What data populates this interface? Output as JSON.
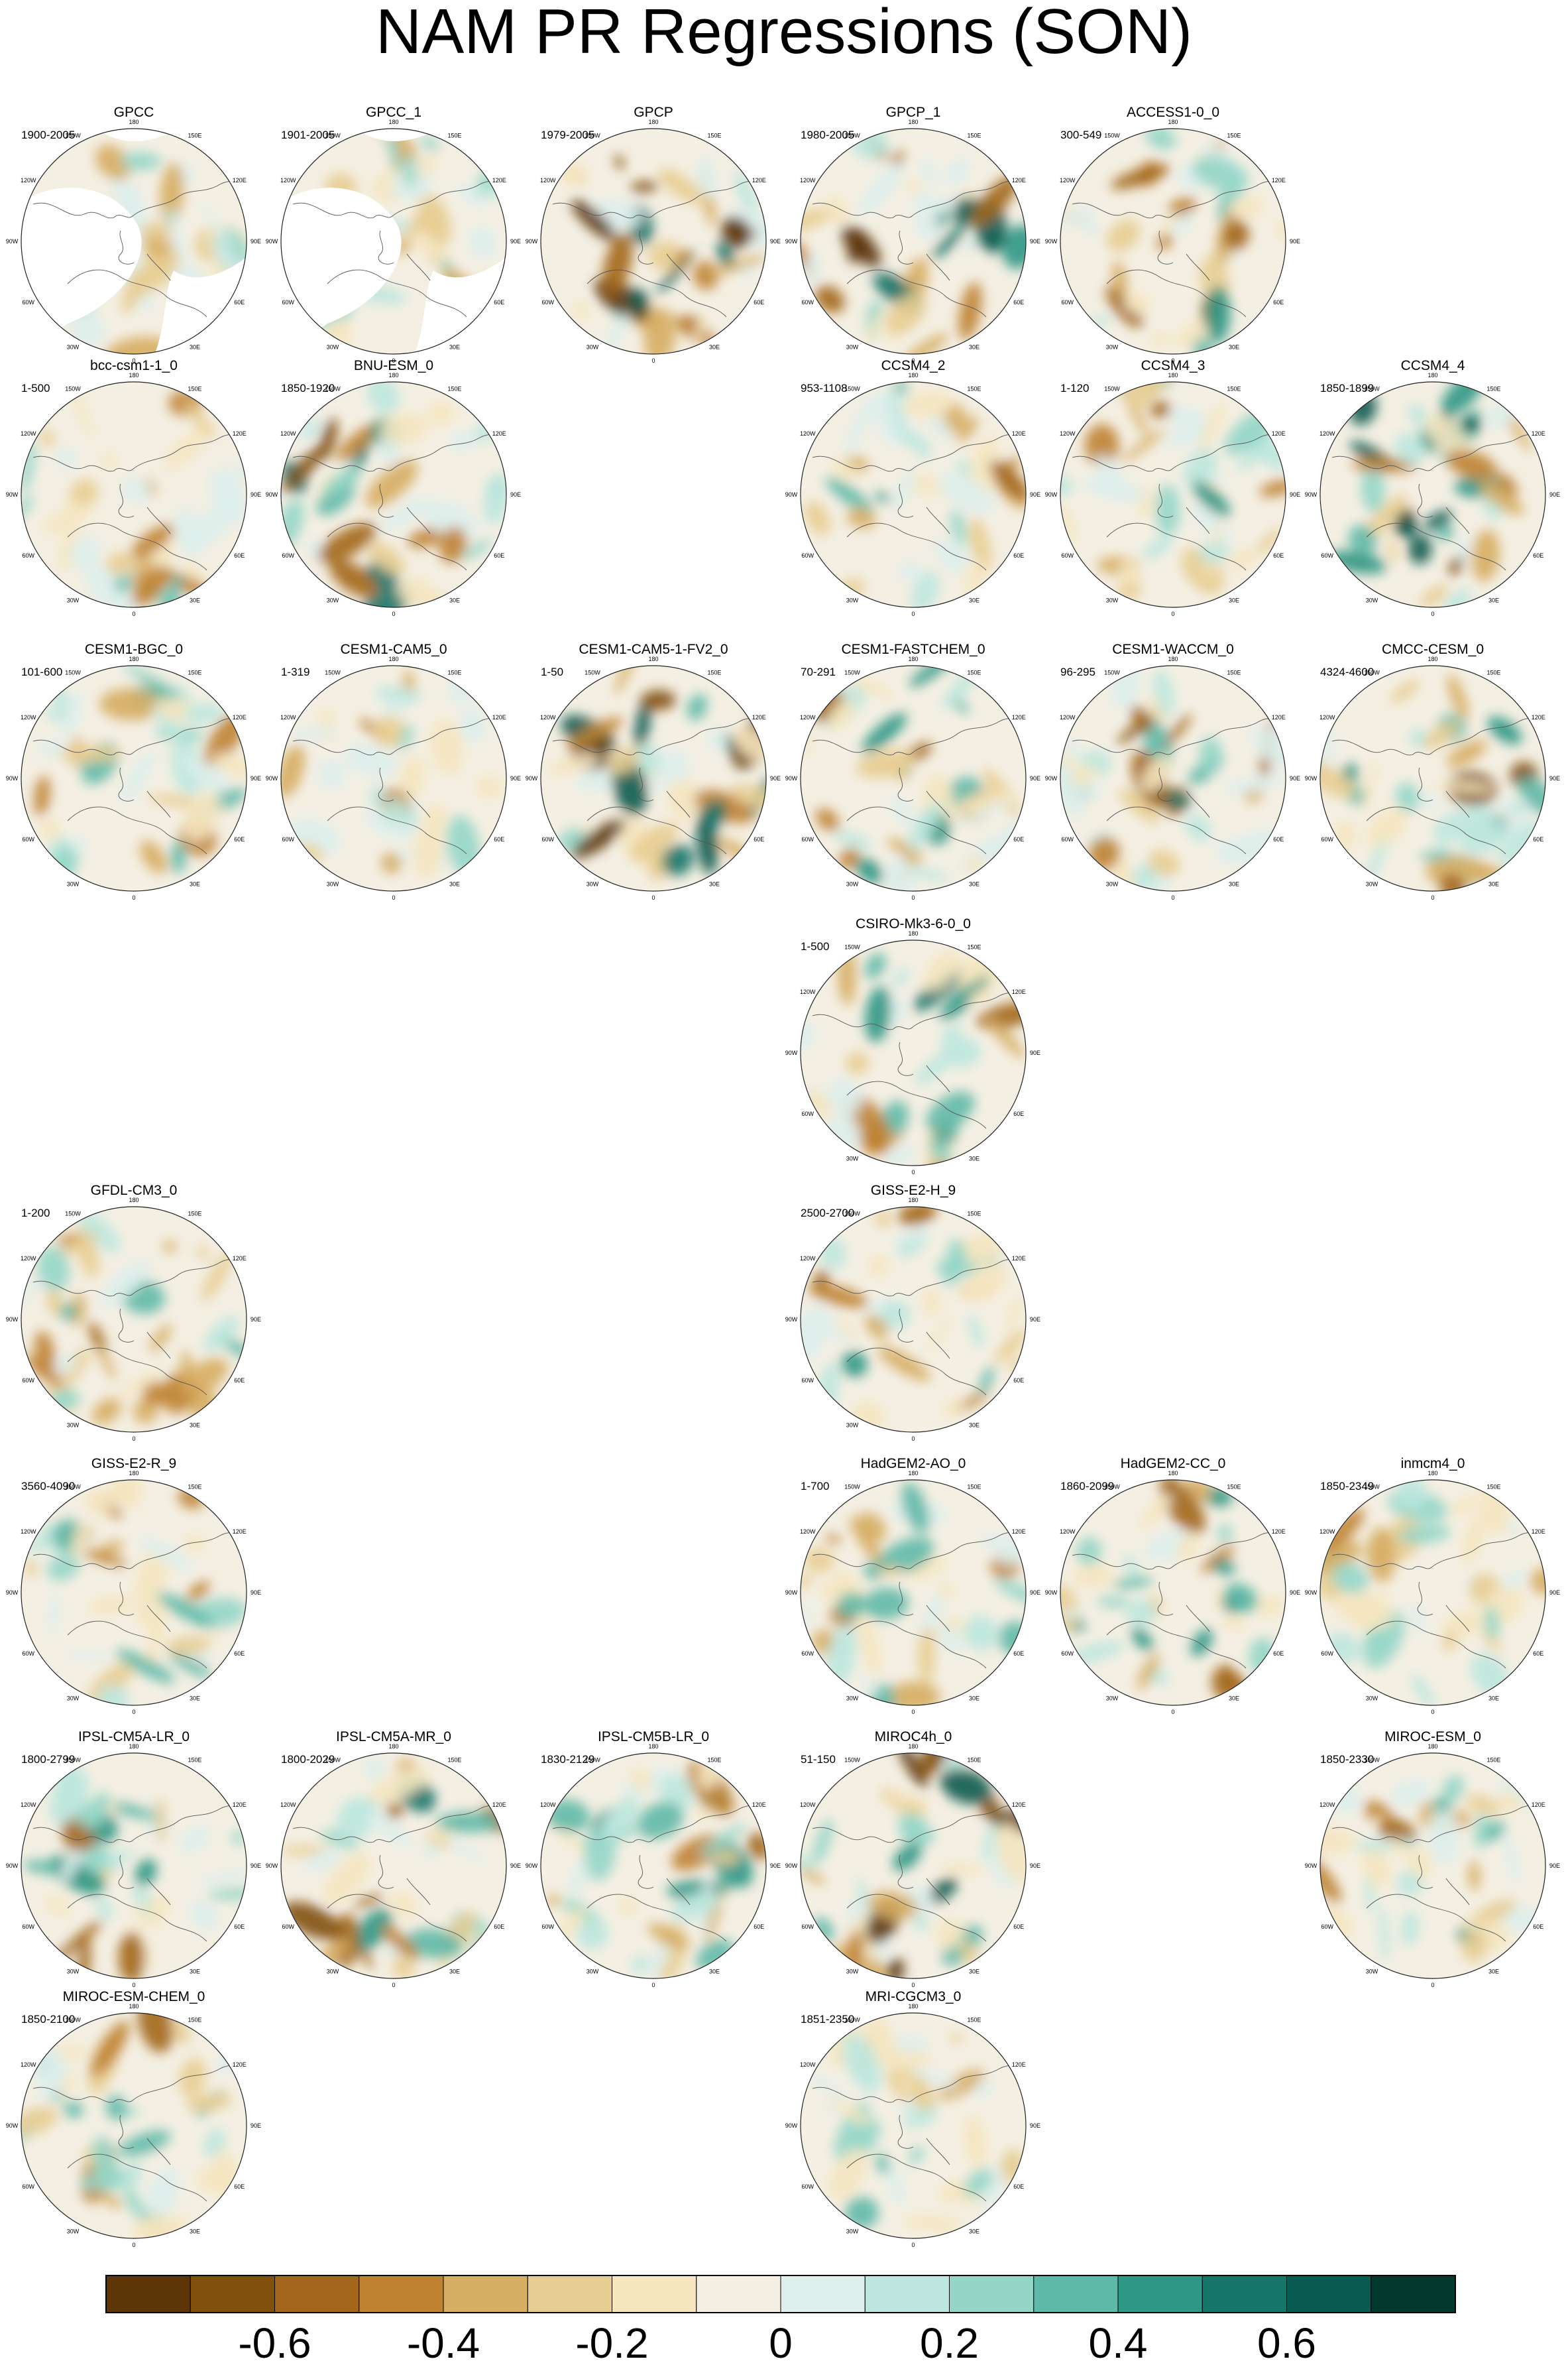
{
  "chart_data": {
    "type": "heatmap",
    "title": "NAM PR Regressions (SON)",
    "projection": "north-polar-stereographic",
    "grid_labels": {
      "top": "180",
      "upper_left": "150W",
      "upper_right": "150E",
      "left_upper": "120W",
      "right_upper": "120E",
      "left": "90W",
      "right": "90E",
      "left_lower": "60W",
      "right_lower": "60E",
      "lower_left": "30W",
      "lower_right": "30E",
      "bottom": "0"
    },
    "colorbar": {
      "colors": [
        "#5c3609",
        "#82500d",
        "#a2661a",
        "#bf8230",
        "#d6ad63",
        "#e8cd92",
        "#f5e6c0",
        "#f4efe3",
        "#ddeeec",
        "#bde7de",
        "#93d6c8",
        "#5fb9a9",
        "#2e9785",
        "#15766a",
        "#095b4f",
        "#01392f"
      ],
      "tick_values": [
        -0.6,
        -0.4,
        -0.2,
        0,
        0.2,
        0.4,
        0.6
      ],
      "tick_labels": [
        "-0.6",
        "-0.4",
        "-0.2",
        "0",
        "0.2",
        "0.4",
        "0.6"
      ]
    },
    "panels": [
      {
        "name": "GPCC",
        "years": "1900-2005",
        "row": 0,
        "col": 0,
        "masked": true,
        "intensity": 0.35
      },
      {
        "name": "GPCC_1",
        "years": "1901-2005",
        "row": 0,
        "col": 1,
        "masked": true,
        "intensity": 0.35
      },
      {
        "name": "GPCP",
        "years": "1979-2005",
        "row": 0,
        "col": 2,
        "masked": false,
        "intensity": 0.9
      },
      {
        "name": "GPCP_1",
        "years": "1980-2005",
        "row": 0,
        "col": 3,
        "masked": false,
        "intensity": 0.9
      },
      {
        "name": "ACCESS1-0_0",
        "years": "300-549",
        "row": 0,
        "col": 4,
        "masked": false,
        "intensity": 0.55
      },
      {
        "name": "bcc-csm1-1_0",
        "years": "1-500",
        "row": 1,
        "col": 0,
        "masked": false,
        "intensity": 0.4
      },
      {
        "name": "BNU-ESM_0",
        "years": "1850-1920",
        "row": 1,
        "col": 1,
        "masked": false,
        "intensity": 0.7
      },
      {
        "name": "CCSM4_2",
        "years": "953-1108",
        "row": 1,
        "col": 3,
        "masked": false,
        "intensity": 0.5
      },
      {
        "name": "CCSM4_3",
        "years": "1-120",
        "row": 1,
        "col": 4,
        "masked": false,
        "intensity": 0.6
      },
      {
        "name": "CCSM4_4",
        "years": "1850-1899",
        "row": 1,
        "col": 5,
        "masked": false,
        "intensity": 0.9
      },
      {
        "name": "CESM1-BGC_0",
        "years": "101-600",
        "row": 2,
        "col": 0,
        "masked": false,
        "intensity": 0.45
      },
      {
        "name": "CESM1-CAM5_0",
        "years": "1-319",
        "row": 2,
        "col": 1,
        "masked": false,
        "intensity": 0.4
      },
      {
        "name": "CESM1-CAM5-1-FV2_0",
        "years": "1-50",
        "row": 2,
        "col": 2,
        "masked": false,
        "intensity": 0.85
      },
      {
        "name": "CESM1-FASTCHEM_0",
        "years": "70-291",
        "row": 2,
        "col": 3,
        "masked": false,
        "intensity": 0.6
      },
      {
        "name": "CESM1-WACCM_0",
        "years": "96-295",
        "row": 2,
        "col": 4,
        "masked": false,
        "intensity": 0.65
      },
      {
        "name": "CMCC-CESM_0",
        "years": "4324-4600",
        "row": 2,
        "col": 5,
        "masked": false,
        "intensity": 0.7
      },
      {
        "name": "CSIRO-Mk3-6-0_0",
        "years": "1-500",
        "row": 3,
        "col": 3,
        "masked": false,
        "intensity": 0.65
      },
      {
        "name": "GFDL-CM3_0",
        "years": "1-200",
        "row": 4,
        "col": 0,
        "masked": false,
        "intensity": 0.5
      },
      {
        "name": "GISS-E2-H_9",
        "years": "2500-2700",
        "row": 4,
        "col": 3,
        "masked": false,
        "intensity": 0.55
      },
      {
        "name": "GISS-E2-R_9",
        "years": "3560-4090",
        "row": 5,
        "col": 0,
        "masked": false,
        "intensity": 0.45
      },
      {
        "name": "HadGEM2-AO_0",
        "years": "1-700",
        "row": 5,
        "col": 3,
        "masked": false,
        "intensity": 0.45
      },
      {
        "name": "HadGEM2-CC_0",
        "years": "1860-2099",
        "row": 5,
        "col": 4,
        "masked": false,
        "intensity": 0.6
      },
      {
        "name": "inmcm4_0",
        "years": "1850-2349",
        "row": 5,
        "col": 5,
        "masked": false,
        "intensity": 0.35
      },
      {
        "name": "IPSL-CM5A-LR_0",
        "years": "1800-2799",
        "row": 6,
        "col": 0,
        "masked": false,
        "intensity": 0.55
      },
      {
        "name": "IPSL-CM5A-MR_0",
        "years": "1800-2029",
        "row": 6,
        "col": 1,
        "masked": false,
        "intensity": 0.6
      },
      {
        "name": "IPSL-CM5B-LR_0",
        "years": "1830-2129",
        "row": 6,
        "col": 2,
        "masked": false,
        "intensity": 0.5
      },
      {
        "name": "MIROC4h_0",
        "years": "51-150",
        "row": 6,
        "col": 3,
        "masked": false,
        "intensity": 0.9
      },
      {
        "name": "MIROC-ESM_0",
        "years": "1850-2330",
        "row": 6,
        "col": 5,
        "masked": false,
        "intensity": 0.5
      },
      {
        "name": "MIROC-ESM-CHEM_0",
        "years": "1850-2100",
        "row": 7,
        "col": 0,
        "masked": false,
        "intensity": 0.5
      },
      {
        "name": "MRI-CGCM3_0",
        "years": "1851-2350",
        "row": 7,
        "col": 3,
        "masked": false,
        "intensity": 0.45
      }
    ]
  }
}
